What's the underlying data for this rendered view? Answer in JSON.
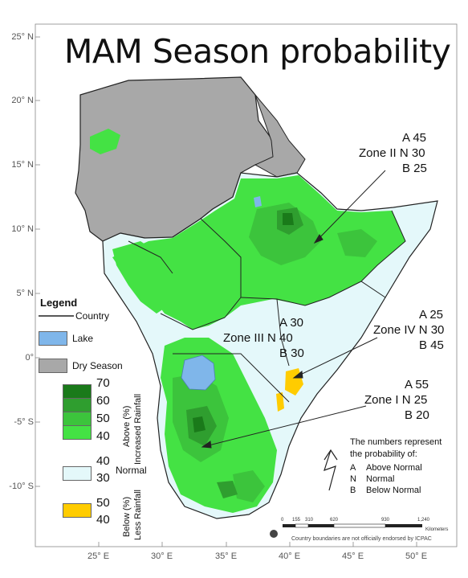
{
  "title": "MAM Season probability",
  "latitudes": [
    "25° N",
    "20° N",
    "15° N",
    "10° N",
    "5° N",
    "0°",
    "-5° S",
    "-10° S"
  ],
  "longitudes": [
    "25° E",
    "30° E",
    "35° E",
    "40° E",
    "45° E",
    "50° E"
  ],
  "zones": [
    {
      "name": "Zone II",
      "a": "A 45",
      "n": "N 30",
      "b": "B 25"
    },
    {
      "name": "Zone III",
      "a": "A 30",
      "n": "N 40",
      "b": "B 30"
    },
    {
      "name": "Zone IV",
      "a": "A 25",
      "n": "N 30",
      "b": "B 45"
    },
    {
      "name": "Zone I",
      "a": "A 55",
      "n": "N 25",
      "b": "B 20"
    }
  ],
  "legend": {
    "title": "Legend",
    "country": "Country",
    "lake": "Lake",
    "dry_season": "Dry Season",
    "above_values": [
      "70",
      "60",
      "50",
      "40"
    ],
    "above_label_1": "Above (%)",
    "above_label_2": "Increased Rainfall",
    "normal_values": [
      "40",
      "30"
    ],
    "normal_label": "Normal",
    "below_values": [
      "50",
      "40"
    ],
    "below_label_1": "Below (%)",
    "below_label_2": "Less Rainfall"
  },
  "note": {
    "line1": "The numbers represent",
    "line2": "the probability of:",
    "items": [
      {
        "key": "A",
        "value": "Above Normal"
      },
      {
        "key": "N",
        "value": "Normal"
      },
      {
        "key": "B",
        "value": "Below Normal"
      }
    ]
  },
  "scale": {
    "ticks": [
      "0",
      "155",
      "310",
      "620",
      "930",
      "1,240"
    ],
    "unit": "Kilometers"
  },
  "endorsement": "Country boundaries are not officially endorsed by ICPAC",
  "colors": {
    "above_70": "#1a7a1a",
    "above_60": "#2f9e2f",
    "above_50": "#3cc43c",
    "above_40": "#44e244",
    "normal": "#e4f8fa",
    "below": "#ffcc00",
    "lake": "#7fb6ea",
    "dry": "#a8a8a8"
  }
}
